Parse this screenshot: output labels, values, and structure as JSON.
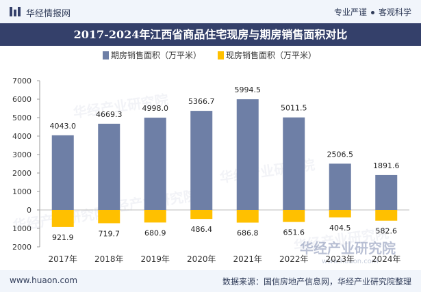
{
  "header": {
    "site_name": "华经情报网",
    "tagline_left": "专业严谨",
    "tagline_right": "客观科学"
  },
  "colors": {
    "title_bg": "#34406a",
    "bar_primary": "#6e7fa6",
    "bar_secondary": "#ffc000"
  },
  "watermark": {
    "text": "华经产业研究院",
    "url": "www.huaon.com"
  },
  "chart_data": {
    "type": "bar",
    "title": "2017-2024年江西省商品住宅现房与期房销售面积对比",
    "categories": [
      "2017年",
      "2018年",
      "2019年",
      "2020年",
      "2021年",
      "2022年",
      "2023年",
      "2024年"
    ],
    "series": [
      {
        "name": "期房销售面积（万平米）",
        "values": [
          4043.0,
          4669.3,
          4998.0,
          5366.7,
          5994.5,
          5011.5,
          2506.5,
          1891.6
        ],
        "labels": [
          "4043.0",
          "4669.3",
          "4998.0",
          "5366.7",
          "5994.5",
          "5011.5",
          "2506.5",
          "1891.6"
        ],
        "direction": "up"
      },
      {
        "name": "现房销售面积（万平米）",
        "values": [
          921.9,
          719.7,
          680.9,
          486.4,
          686.8,
          651.6,
          404.5,
          582.6
        ],
        "labels": [
          "921.9",
          "719.7",
          "680.9",
          "486.4",
          "686.8",
          "651.6",
          "404.5",
          "582.6"
        ],
        "direction": "down"
      }
    ],
    "yaxis": {
      "ticks": [
        -2000,
        -1000,
        0,
        1000,
        2000,
        3000,
        4000,
        5000,
        6000,
        7000
      ],
      "tick_labels": [
        "2000",
        "1000",
        "0",
        "1000",
        "2000",
        "3000",
        "4000",
        "5000",
        "6000",
        "7000"
      ],
      "ylim": [
        -2000,
        7000
      ]
    },
    "grid": false,
    "legend": "top-center"
  },
  "footer": {
    "url": "www.huaon.com",
    "source": "数据来源：国信房地产信息网，华经产业研究院整理"
  }
}
